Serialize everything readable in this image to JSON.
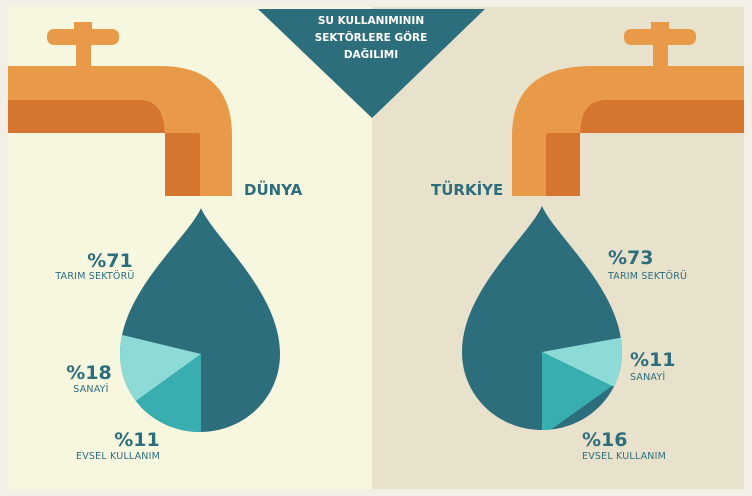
{
  "title_lines": [
    "SU KULLANIMININ",
    "SEKTÖRLERE GÖRE",
    "DAĞILIMI"
  ],
  "colors": {
    "left_bg": "#f7f6df",
    "right_bg": "#e8e1cb",
    "frame": "#f3efe6",
    "teal_dark": "#2d6e7c",
    "teal_mid": "#39aeb0",
    "teal_light": "#8ddbd6",
    "pipe_light": "#e99a48",
    "pipe_dark": "#d6752d",
    "text": "#2d6e7c"
  },
  "chart_data": [
    {
      "type": "pie",
      "region": "DÜNYA",
      "slices": [
        {
          "label": "TARIM SEKTÖRÜ",
          "value": 71,
          "display": "%71",
          "color": "#2d6e7c"
        },
        {
          "label": "SANAYİ",
          "value": 18,
          "display": "%18",
          "color": "#8ddbd6"
        },
        {
          "label": "EVSEL KULLANIM",
          "value": 11,
          "display": "%11",
          "color": "#39aeb0"
        }
      ]
    },
    {
      "type": "pie",
      "region": "TÜRKİYE",
      "slices": [
        {
          "label": "TARIM SEKTÖRÜ",
          "value": 73,
          "display": "%73",
          "color": "#2d6e7c"
        },
        {
          "label": "SANAYİ",
          "value": 11,
          "display": "%11",
          "color": "#8ddbd6"
        },
        {
          "label": "EVSEL KULLANIM",
          "value": 16,
          "display": "%16",
          "color": "#39aeb0"
        }
      ]
    }
  ]
}
